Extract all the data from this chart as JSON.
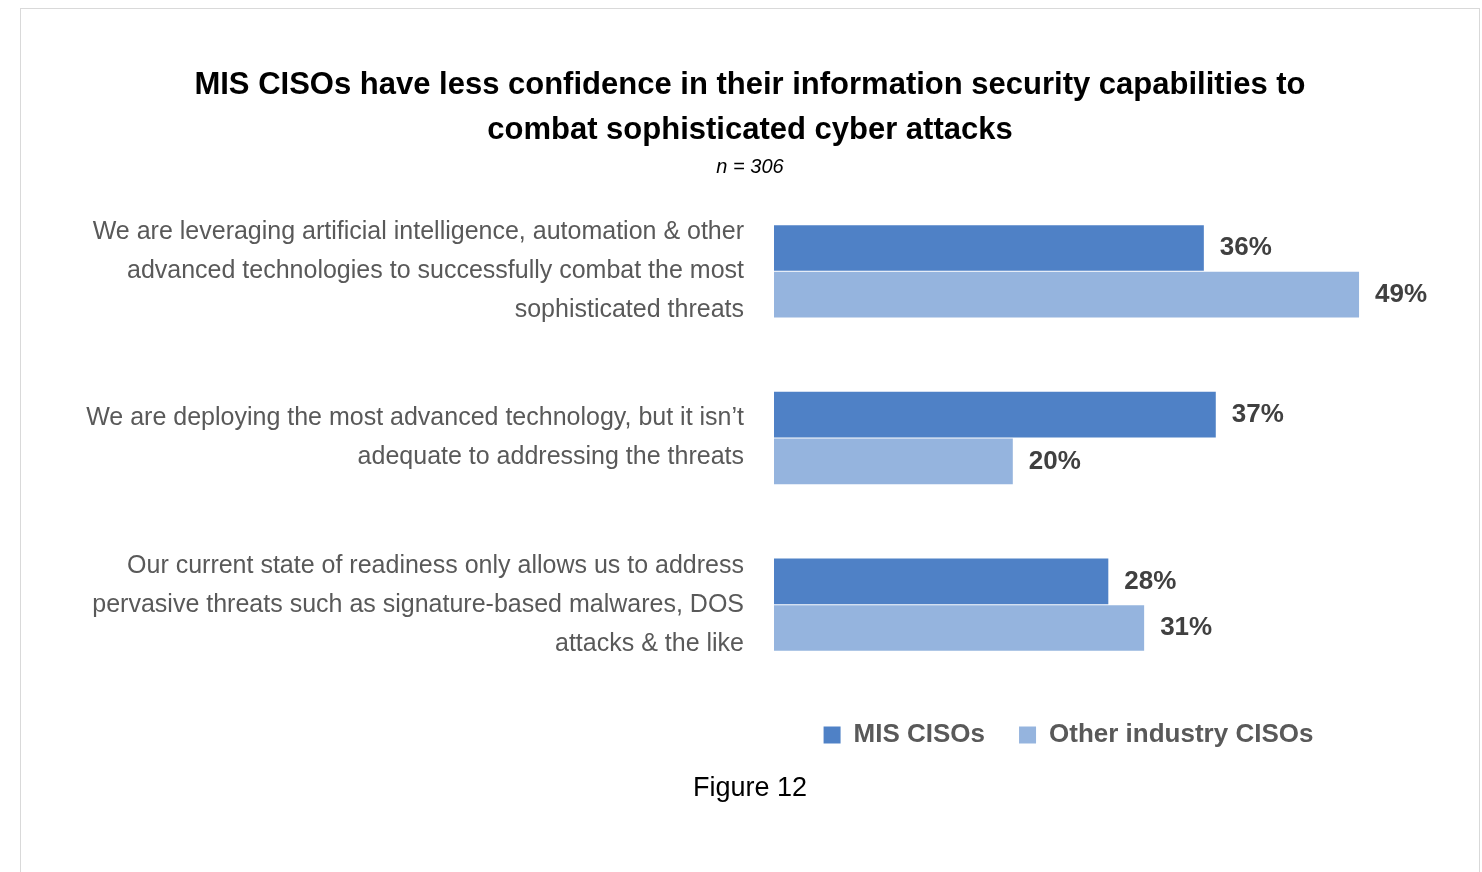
{
  "chart_data": {
    "type": "bar",
    "orientation": "horizontal",
    "title": "MIS CISOs have less confidence in their information security capabilities to combat sophisticated cyber attacks",
    "subtitle": "n = 306",
    "categories": [
      "We are leveraging artificial intelligence, automation & other advanced technologies to successfully combat the most sophisticated threats",
      "We are deploying the most advanced technology, but it isn’t adequate to addressing the threats",
      "Our current state of readiness only allows us to address pervasive threats such as signature-based malwares, DOS attacks & the like"
    ],
    "series": [
      {
        "name": "MIS CISOs",
        "color": "#4f81c6",
        "values": [
          36,
          37,
          28
        ],
        "value_labels": [
          "36%",
          "37%",
          "28%"
        ]
      },
      {
        "name": "Other industry CISOs",
        "color": "#95b4de",
        "values": [
          49,
          20,
          31
        ],
        "value_labels": [
          "49%",
          "20%",
          "31%"
        ]
      }
    ],
    "legend": "bottom",
    "annotations": [
      "Figure 12"
    ]
  }
}
